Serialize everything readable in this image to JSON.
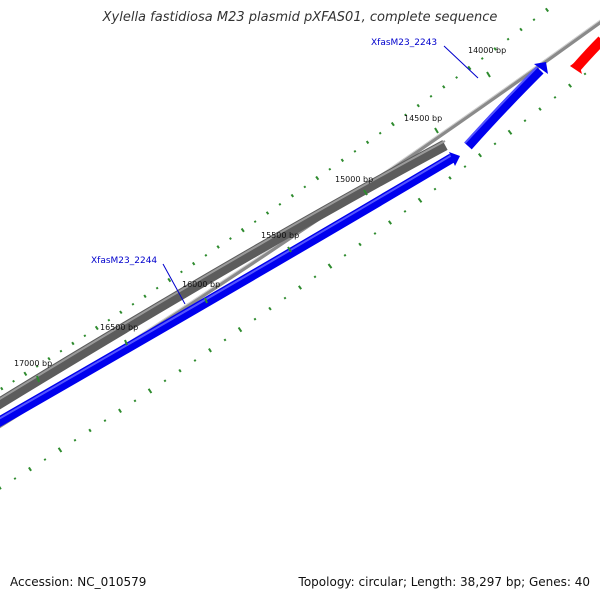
{
  "title": "Xylella fastidiosa M23 plasmid pXFAS01, complete sequence",
  "footer": {
    "accession": "Accession: NC_010579",
    "summary": "Topology: circular; Length: 38,297 bp; Genes: 40"
  },
  "colors": {
    "backbone": "#7a7a7a",
    "gc_ticks": "#2e8b2e",
    "gene_forward": "#0000ee",
    "gene_reverse": "#ff0000",
    "other_feature": "#555555",
    "label": "#0000cc"
  },
  "scale_ticks": [
    {
      "label": "14000 bp"
    },
    {
      "label": "14500 bp"
    },
    {
      "label": "15000 bp"
    },
    {
      "label": "15500 bp"
    },
    {
      "label": "16000 bp"
    },
    {
      "label": "16500 bp"
    },
    {
      "label": "17000 bp"
    }
  ],
  "genes": [
    {
      "name": "XfasM23_2243"
    },
    {
      "name": "XfasM23_2244"
    }
  ]
}
